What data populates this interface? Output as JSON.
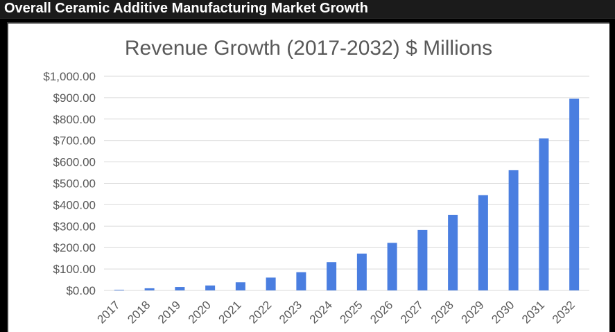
{
  "page": {
    "header_title": "Overall Ceramic Additive Manufacturing Market Growth"
  },
  "colors": {
    "bar": "#4a7ee0",
    "grid": "#d9d9d9",
    "text": "#595959",
    "header_bg": "#1b1b1b",
    "header_text": "#ffffff"
  },
  "chart_data": {
    "type": "bar",
    "title": "Revenue Growth (2017-2032) $ Millions",
    "xlabel": "",
    "ylabel": "",
    "categories": [
      "2017",
      "2018",
      "2019",
      "2020",
      "2021",
      "2022",
      "2023",
      "2024",
      "2025",
      "2026",
      "2027",
      "2028",
      "2029",
      "2030",
      "2031",
      "2032"
    ],
    "values": [
      3,
      10,
      16,
      23,
      38,
      60,
      85,
      132,
      172,
      222,
      282,
      353,
      445,
      562,
      710,
      895
    ],
    "ylim": [
      0,
      1000
    ],
    "yticks": [
      0,
      100,
      200,
      300,
      400,
      500,
      600,
      700,
      800,
      900,
      1000
    ],
    "ytick_labels": [
      "$0.00",
      "$100.00",
      "$200.00",
      "$300.00",
      "$400.00",
      "$500.00",
      "$600.00",
      "$700.00",
      "$800.00",
      "$900.00",
      "$1,000.00"
    ],
    "grid": true,
    "legend": "none"
  }
}
